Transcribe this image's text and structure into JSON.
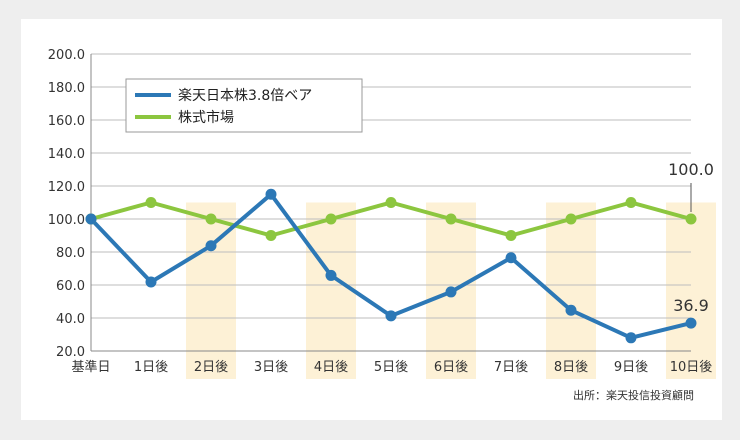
{
  "chart_data": {
    "type": "line",
    "categories": [
      "基準日",
      "1日後",
      "2日後",
      "3日後",
      "4日後",
      "5日後",
      "6日後",
      "7日後",
      "8日後",
      "9日後",
      "10日後"
    ],
    "highlighted_categories": [
      "2日後",
      "4日後",
      "6日後",
      "8日後",
      "10日後"
    ],
    "series": [
      {
        "name": "楽天日本株3.8倍ベア",
        "color": "#2c78b6",
        "values": [
          100.0,
          61.8,
          83.8,
          115.0,
          65.8,
          41.3,
          55.8,
          76.5,
          44.7,
          28.0,
          36.9
        ]
      },
      {
        "name": "株式市場",
        "color": "#8cc63f",
        "values": [
          100.0,
          110.0,
          100.0,
          90.0,
          100.0,
          110.0,
          100.0,
          90.0,
          100.0,
          110.0,
          100.0
        ]
      }
    ],
    "yticks": [
      "20.0",
      "40.0",
      "60.0",
      "80.0",
      "100.0",
      "120.0",
      "140.0",
      "160.0",
      "180.0",
      "200.0"
    ],
    "ylim": [
      20,
      200
    ],
    "grid": true,
    "legend_position": "top-left",
    "annotations": [
      {
        "series": 0,
        "index": 10,
        "text": "36.9"
      },
      {
        "series": 1,
        "index": 10,
        "text": "100.0",
        "leader": true
      }
    ],
    "source": "出所：楽天投信投資顧問",
    "colors": {
      "highlight": "#fdf1d6",
      "grid": "#bdbdbd",
      "axis": "#888888"
    }
  }
}
